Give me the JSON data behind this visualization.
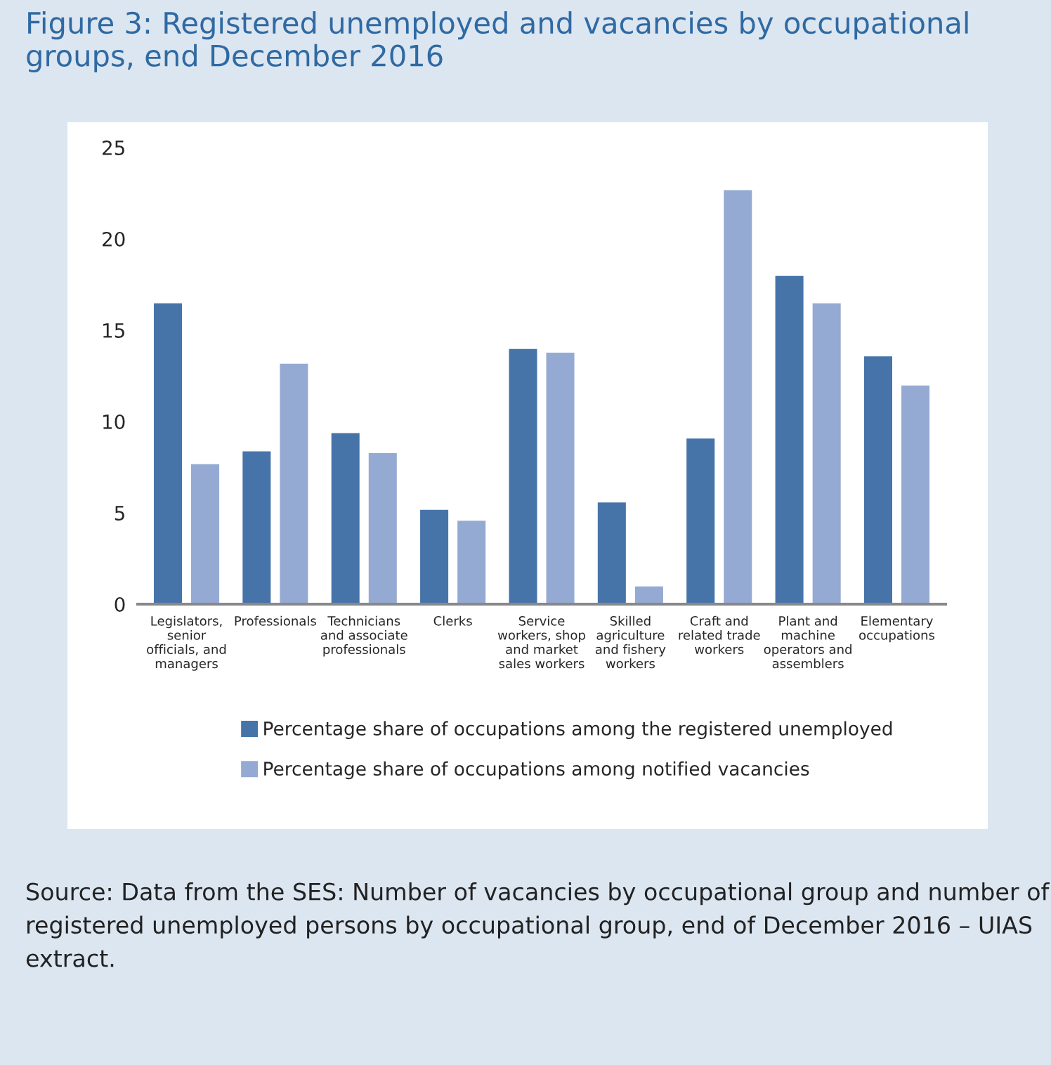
{
  "chart_data": {
    "type": "bar",
    "title": "Figure 3: Registered unemployed and vacancies by occupational groups, end December 2016",
    "categories": [
      "Legislators, senior officials, and managers",
      "Professionals",
      "Technicians and associate professionals",
      "Clerks",
      "Service workers, shop and market sales workers",
      "Skilled agriculture and fishery workers",
      "Craft and related trade workers",
      "Plant and machine operators and assemblers",
      "Elementary occupations"
    ],
    "series": [
      {
        "name": "Percentage share of occupations among the registered unemployed",
        "color": "#4674a9",
        "values": [
          16.5,
          8.4,
          9.4,
          5.2,
          14.0,
          5.6,
          9.1,
          18.0,
          13.6
        ]
      },
      {
        "name": "Percentage share of occupations among notified vacancies",
        "color": "#95aad2",
        "values": [
          7.7,
          13.2,
          8.3,
          4.6,
          13.8,
          1.0,
          22.7,
          16.5,
          12.0
        ]
      }
    ],
    "ylim": [
      0,
      25
    ],
    "yticks": [
      0,
      5,
      10,
      15,
      20,
      25
    ],
    "grid": false,
    "legend": "bottom",
    "annotations": [
      "Source: Data from the SES: Number of vacancies by occupational group and number of registered unemployed persons by occupational group, end of December 2016 – UIAS extract."
    ]
  }
}
